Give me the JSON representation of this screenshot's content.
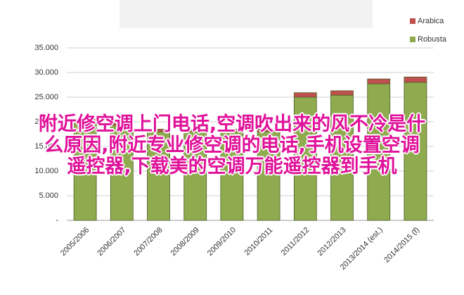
{
  "chart_data": {
    "type": "stacked-bar",
    "categories": [
      "2005/2006",
      "2006/2007",
      "2007/2008",
      "2008/2009",
      "2009/2010",
      "2010/2011",
      "2011/2012",
      "2012/2013",
      "2013/2014 (est.)",
      "2014/2015 (f)"
    ],
    "series": [
      {
        "name": "Robusta",
        "color": "#8faa4f",
        "values": [
          20000,
          19300,
          18000,
          18000,
          18000,
          18000,
          25000,
          25400,
          27700,
          28000
        ]
      },
      {
        "name": "Arabica",
        "color": "#c0504d",
        "values": [
          500,
          500,
          500,
          500,
          500,
          500,
          900,
          900,
          1000,
          1100
        ]
      }
    ],
    "ylim": [
      0,
      35000
    ],
    "yticks": [
      {
        "value": 0,
        "label": "-"
      },
      {
        "value": 5000,
        "label": "5.000"
      },
      {
        "value": 10000,
        "label": "10.000"
      },
      {
        "value": 15000,
        "label": "15.000"
      },
      {
        "value": 20000,
        "label": "20.000"
      },
      {
        "value": 25000,
        "label": "25.000"
      },
      {
        "value": 30000,
        "label": "30.000"
      },
      {
        "value": 35000,
        "label": "35.000"
      }
    ],
    "grid": true
  },
  "overlay": {
    "lines": [
      "附近修空调上门电话,空调吹出来的风不冷是什",
      "么原因,附近专业修空调的电话,手机设置空调",
      "遥控器,下载美的空调万能遥控器到手机"
    ]
  }
}
